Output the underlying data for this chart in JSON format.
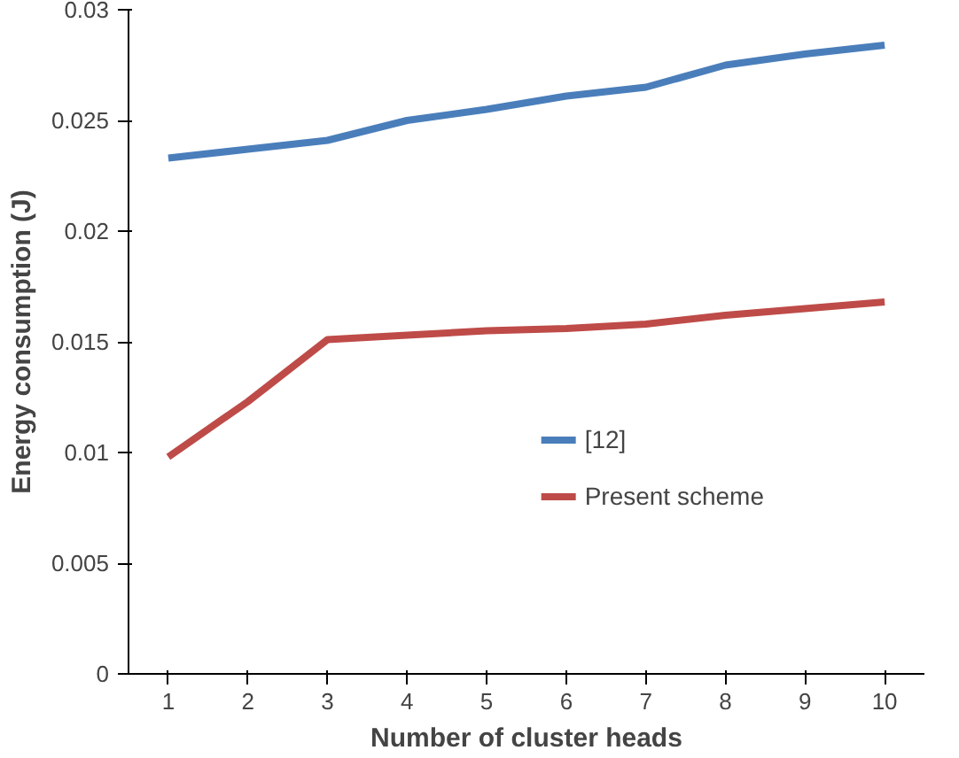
{
  "chart_data": {
    "type": "line",
    "xlabel": "Number of cluster heads",
    "ylabel": "Energy consumption (J)",
    "categories": [
      "1",
      "2",
      "3",
      "4",
      "5",
      "6",
      "7",
      "8",
      "9",
      "10"
    ],
    "series": [
      {
        "name": "[12]",
        "color": "#4a7ebb",
        "values": [
          0.0233,
          0.0237,
          0.0241,
          0.025,
          0.0255,
          0.0261,
          0.0265,
          0.0275,
          0.028,
          0.0284
        ]
      },
      {
        "name": "Present scheme",
        "color": "#be4b48",
        "values": [
          0.0098,
          0.0123,
          0.0151,
          0.0153,
          0.0155,
          0.0156,
          0.0158,
          0.0162,
          0.0165,
          0.0168
        ]
      }
    ],
    "ylim": [
      0,
      0.03
    ],
    "yticks": [
      0,
      0.005,
      0.01,
      0.015,
      0.02,
      0.025,
      0.03
    ],
    "grid": false,
    "legend": "bottom right",
    "marker": "none",
    "line_style": "solid"
  }
}
